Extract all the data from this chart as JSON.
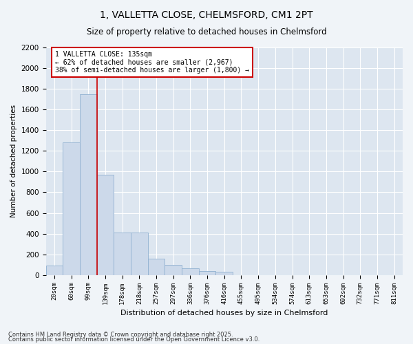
{
  "title": "1, VALLETTA CLOSE, CHELMSFORD, CM1 2PT",
  "subtitle": "Size of property relative to detached houses in Chelmsford",
  "xlabel": "Distribution of detached houses by size in Chelmsford",
  "ylabel": "Number of detached properties",
  "categories": [
    "20sqm",
    "60sqm",
    "99sqm",
    "139sqm",
    "178sqm",
    "218sqm",
    "257sqm",
    "297sqm",
    "336sqm",
    "376sqm",
    "416sqm",
    "455sqm",
    "495sqm",
    "534sqm",
    "574sqm",
    "613sqm",
    "653sqm",
    "692sqm",
    "732sqm",
    "771sqm",
    "811sqm"
  ],
  "values": [
    90,
    1280,
    1750,
    970,
    410,
    410,
    155,
    100,
    65,
    40,
    30,
    0,
    0,
    0,
    0,
    0,
    0,
    0,
    0,
    0,
    0
  ],
  "bar_color": "#ccd9ea",
  "bar_edge_color": "#8fb0d0",
  "vline_position": 2.5,
  "vline_color": "#cc0000",
  "annotation_text": "1 VALLETTA CLOSE: 135sqm\n← 62% of detached houses are smaller (2,967)\n38% of semi-detached houses are larger (1,800) →",
  "annotation_box_facecolor": "#ffffff",
  "annotation_box_edgecolor": "#cc0000",
  "ylim": [
    0,
    2200
  ],
  "yticks": [
    0,
    200,
    400,
    600,
    800,
    1000,
    1200,
    1400,
    1600,
    1800,
    2000,
    2200
  ],
  "background_color": "#dde6f0",
  "plot_bg_color": "#dde6f0",
  "fig_bg_color": "#f0f4f8",
  "grid_color": "#ffffff",
  "footer_line1": "Contains HM Land Registry data © Crown copyright and database right 2025.",
  "footer_line2": "Contains public sector information licensed under the Open Government Licence v3.0."
}
